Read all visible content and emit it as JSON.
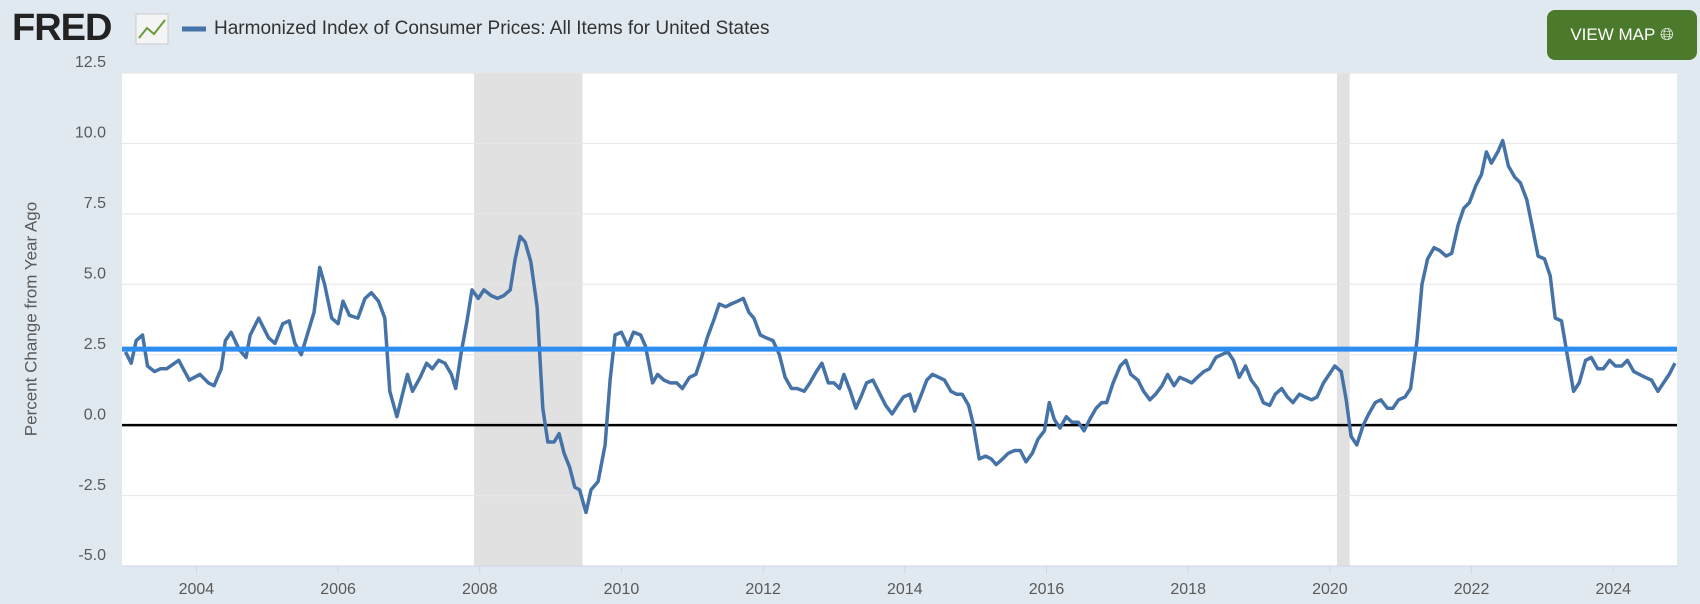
{
  "header": {
    "logo": "FRED",
    "button": "VIEW MAP"
  },
  "chart_data": {
    "type": "line",
    "y_label": "Percent Change from Year Ago",
    "xlim": [
      2002.95,
      2024.9
    ],
    "xticks": [
      2004,
      2006,
      2008,
      2010,
      2012,
      2014,
      2016,
      2018,
      2020,
      2022,
      2024
    ],
    "ylim": [
      -5,
      12.5
    ],
    "yticks": [
      {
        "value": -5,
        "label": "-5.0"
      },
      -2.5,
      {
        "value": 0,
        "label": "0.0"
      },
      2.5,
      {
        "value": 5,
        "label": "5.0"
      },
      7.5,
      {
        "value": 10,
        "label": "10.0"
      },
      12.5
    ],
    "grid": true,
    "recessions": [
      [
        2007.92,
        2009.45
      ],
      [
        2020.1,
        2020.28
      ]
    ],
    "recession_color": "#e1e1e1",
    "reference_line": 2.7,
    "reference_color": "#2e8ef0",
    "x": [
      2003.0,
      2003.08,
      2003.15,
      2003.24,
      2003.31,
      2003.41,
      2003.49,
      2003.58,
      2003.75,
      2003.9,
      2004.05,
      2004.17,
      2004.25,
      2004.35,
      2004.41,
      2004.49,
      2004.6,
      2004.7,
      2004.76,
      2004.88,
      2005.02,
      2005.11,
      2005.22,
      2005.31,
      2005.39,
      2005.48,
      2005.66,
      2005.74,
      2005.81,
      2005.91,
      2006.0,
      2006.07,
      2006.16,
      2006.28,
      2006.38,
      2006.47,
      2006.57,
      2006.66,
      2006.73,
      2006.83,
      2006.91,
      2006.98,
      2007.05,
      2007.16,
      2007.25,
      2007.33,
      2007.42,
      2007.51,
      2007.6,
      2007.66,
      2007.74,
      2007.82,
      2007.89,
      2007.98,
      2008.06,
      2008.16,
      2008.25,
      2008.34,
      2008.43,
      2008.5,
      2008.57,
      2008.64,
      2008.72,
      2008.81,
      2008.89,
      2008.96,
      2009.05,
      2009.12,
      2009.19,
      2009.27,
      2009.34,
      2009.41,
      2009.5,
      2009.57,
      2009.67,
      2009.77,
      2009.84,
      2009.91,
      2010.0,
      2010.09,
      2010.17,
      2010.27,
      2010.34,
      2010.44,
      2010.51,
      2010.6,
      2010.69,
      2010.78,
      2010.86,
      2010.96,
      2011.05,
      2011.13,
      2011.21,
      2011.3,
      2011.38,
      2011.47,
      2011.55,
      2011.64,
      2011.72,
      2011.8,
      2011.87,
      2011.96,
      2012.04,
      2012.14,
      2012.23,
      2012.31,
      2012.4,
      2012.48,
      2012.58,
      2012.66,
      2012.75,
      2012.83,
      2012.92,
      2013.0,
      2013.08,
      2013.14,
      2013.23,
      2013.31,
      2013.38,
      2013.46,
      2013.55,
      2013.65,
      2013.73,
      2013.82,
      2013.9,
      2013.98,
      2014.07,
      2014.14,
      2014.22,
      2014.31,
      2014.39,
      2014.48,
      2014.56,
      2014.65,
      2014.73,
      2014.81,
      2014.9,
      2014.97,
      2015.05,
      2015.14,
      2015.22,
      2015.29,
      2015.38,
      2015.46,
      2015.55,
      2015.63,
      2015.71,
      2015.8,
      2015.88,
      2015.97,
      2016.04,
      2016.11,
      2016.19,
      2016.28,
      2016.36,
      2016.45,
      2016.53,
      2016.61,
      2016.7,
      2016.78,
      2016.85,
      2016.94,
      2017.04,
      2017.12,
      2017.19,
      2017.29,
      2017.37,
      2017.46,
      2017.54,
      2017.63,
      2017.71,
      2017.8,
      2017.88,
      2017.97,
      2018.05,
      2018.13,
      2018.22,
      2018.3,
      2018.39,
      2018.47,
      2018.56,
      2018.64,
      2018.72,
      2018.81,
      2018.89,
      2018.98,
      2019.06,
      2019.15,
      2019.23,
      2019.32,
      2019.4,
      2019.48,
      2019.57,
      2019.65,
      2019.74,
      2019.82,
      2019.91,
      2019.99,
      2020.07,
      2020.16,
      2020.23,
      2020.3,
      2020.38,
      2020.47,
      2020.55,
      2020.64,
      2020.72,
      2020.81,
      2020.89,
      2020.97,
      2021.06,
      2021.14,
      2021.23,
      2021.3,
      2021.38,
      2021.47,
      2021.55,
      2021.64,
      2021.72,
      2021.81,
      2021.89,
      2021.97,
      2022.06,
      2022.14,
      2022.21,
      2022.28,
      2022.37,
      2022.44,
      2022.52,
      2022.61,
      2022.69,
      2022.78,
      2022.86,
      2022.94,
      2023.03,
      2023.11,
      2023.18,
      2023.27,
      2023.35,
      2023.44,
      2023.52,
      2023.61,
      2023.69,
      2023.78,
      2023.86,
      2023.95,
      2024.03,
      2024.12,
      2024.2,
      2024.29,
      2024.37,
      2024.45,
      2024.54,
      2024.63,
      2024.71,
      2024.79,
      2024.87
    ],
    "series": [
      {
        "name": "Harmonized Index of Consumer Prices: All Items for United States",
        "color": "#4572a7",
        "values": [
          2.6,
          2.2,
          3.0,
          3.2,
          2.1,
          1.9,
          2.0,
          2.0,
          2.3,
          1.6,
          1.8,
          1.5,
          1.4,
          2.0,
          3.0,
          3.3,
          2.7,
          2.4,
          3.2,
          3.8,
          3.1,
          2.9,
          3.6,
          3.7,
          2.9,
          2.5,
          4.0,
          5.6,
          5.0,
          3.8,
          3.6,
          4.4,
          3.9,
          3.8,
          4.5,
          4.7,
          4.4,
          3.8,
          1.2,
          0.3,
          1.1,
          1.8,
          1.2,
          1.7,
          2.2,
          2.0,
          2.3,
          2.2,
          1.8,
          1.3,
          2.6,
          3.7,
          4.8,
          4.5,
          4.8,
          4.6,
          4.5,
          4.6,
          4.8,
          5.9,
          6.7,
          6.5,
          5.8,
          4.2,
          0.6,
          -0.6,
          -0.6,
          -0.3,
          -1.0,
          -1.5,
          -2.2,
          -2.3,
          -3.1,
          -2.3,
          -2.0,
          -0.7,
          1.6,
          3.2,
          3.3,
          2.8,
          3.3,
          3.2,
          2.8,
          1.5,
          1.8,
          1.6,
          1.5,
          1.5,
          1.3,
          1.7,
          1.8,
          2.4,
          3.1,
          3.7,
          4.3,
          4.2,
          4.3,
          4.4,
          4.5,
          4.0,
          3.8,
          3.2,
          3.1,
          3.0,
          2.5,
          1.7,
          1.3,
          1.3,
          1.2,
          1.5,
          1.9,
          2.2,
          1.5,
          1.5,
          1.3,
          1.8,
          1.2,
          0.6,
          1.0,
          1.5,
          1.6,
          1.1,
          0.7,
          0.4,
          0.7,
          1.0,
          1.1,
          0.5,
          1.0,
          1.6,
          1.8,
          1.7,
          1.6,
          1.2,
          1.1,
          1.1,
          0.7,
          0.0,
          -1.2,
          -1.1,
          -1.2,
          -1.4,
          -1.2,
          -1.0,
          -0.9,
          -0.9,
          -1.3,
          -1.0,
          -0.5,
          -0.2,
          0.8,
          0.2,
          -0.1,
          0.3,
          0.1,
          0.1,
          -0.2,
          0.2,
          0.6,
          0.8,
          0.8,
          1.5,
          2.1,
          2.3,
          1.8,
          1.6,
          1.2,
          0.9,
          1.1,
          1.4,
          1.8,
          1.4,
          1.7,
          1.6,
          1.5,
          1.7,
          1.9,
          2.0,
          2.4,
          2.5,
          2.6,
          2.3,
          1.7,
          2.1,
          1.6,
          1.3,
          0.8,
          0.7,
          1.1,
          1.3,
          1.0,
          0.8,
          1.1,
          1.0,
          0.9,
          1.0,
          1.5,
          1.8,
          2.1,
          1.9,
          0.9,
          -0.4,
          -0.7,
          0.0,
          0.4,
          0.8,
          0.9,
          0.6,
          0.6,
          0.9,
          1.0,
          1.3,
          3.0,
          5.0,
          5.9,
          6.3,
          6.2,
          6.0,
          6.1,
          7.1,
          7.7,
          7.9,
          8.5,
          8.9,
          9.7,
          9.3,
          9.7,
          10.1,
          9.2,
          8.8,
          8.6,
          8.0,
          7.0,
          6.0,
          5.9,
          5.3,
          3.8,
          3.7,
          2.5,
          1.2,
          1.5,
          2.3,
          2.4,
          2.0,
          2.0,
          2.3,
          2.1,
          2.1,
          2.3,
          1.9,
          1.8,
          1.7,
          1.6,
          1.2,
          1.5,
          1.8,
          2.2
        ]
      }
    ]
  }
}
